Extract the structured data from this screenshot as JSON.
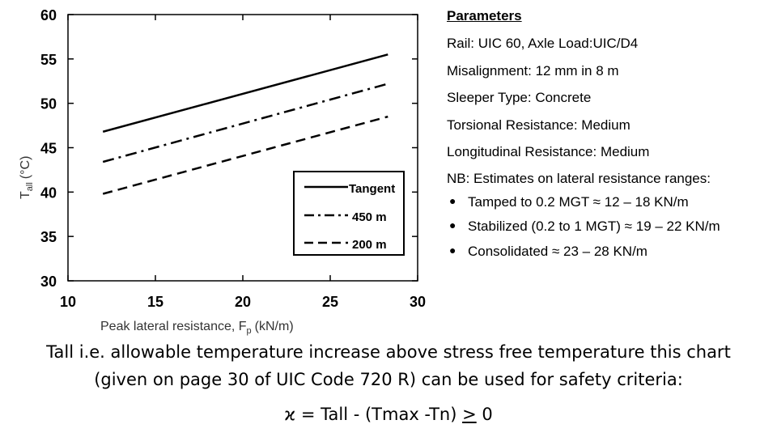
{
  "chart_data": {
    "type": "line",
    "xlim": [
      10,
      30
    ],
    "ylim": [
      30,
      60
    ],
    "xticks": [
      "10",
      "15",
      "20",
      "25",
      "30"
    ],
    "yticks": [
      "30",
      "35",
      "40",
      "45",
      "50",
      "55",
      "60"
    ],
    "xlabel": "Peak lateral resistance, F",
    "xlabel_sub": "p",
    "xlabel_unit": "(kN/m)",
    "ylabel": "T",
    "ylabel_sub": "all",
    "ylabel_unit": "(°C)",
    "legend_position": "bottom-right",
    "series": [
      {
        "name": "Tangent",
        "style": "solid",
        "x": [
          12,
          28.3
        ],
        "y": [
          46.8,
          55.5
        ]
      },
      {
        "name": "450 m",
        "style": "dash-dot",
        "x": [
          12,
          28.3
        ],
        "y": [
          43.4,
          52.2
        ]
      },
      {
        "name": "200 m",
        "style": "dashed",
        "x": [
          12,
          28.3
        ],
        "y": [
          39.8,
          48.5
        ]
      }
    ]
  },
  "params": {
    "title": "Parameters",
    "rail": "Rail: UIC 60, Axle Load:UIC/D4",
    "misalignment": "Misalignment: 12 mm in 8 m",
    "sleeper": "Sleeper Type: Concrete",
    "torsional": "Torsional Resistance: Medium",
    "longitudinal": "Longitudinal Resistance: Medium",
    "nb": "NB: Estimates on lateral resistance ranges:",
    "bullets": [
      "Tamped to 0.2 MGT ≈ 12 – 18 KN/m",
      "Stabilized (0.2 to 1 MGT) ≈ 19 – 22 KN/m",
      "Consolidated ≈ 23 – 28 KN/m"
    ]
  },
  "caption": {
    "line1": "Tall i.e. allowable temperature increase above stress free temperature this chart",
    "line2": "(given on page 30 of UIC Code 720 R) can be used for safety criteria:"
  },
  "formula": {
    "symbol": "ϰ",
    "text": " = Tall - (Tmax -Tn) ",
    "geq": ">",
    "rhs": " 0"
  }
}
